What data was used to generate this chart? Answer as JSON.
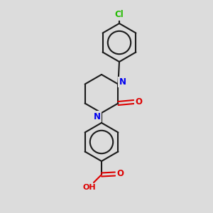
{
  "background_color": "#dcdcdc",
  "bond_color": "#1a1a1a",
  "atom_colors": {
    "N": "#0000ee",
    "O": "#dd0000",
    "Cl": "#22bb00",
    "C": "#1a1a1a"
  },
  "figsize": [
    3.0,
    3.0
  ],
  "dpi": 100,
  "lw": 1.5,
  "ring_r": 28,
  "font_size": 8.5
}
